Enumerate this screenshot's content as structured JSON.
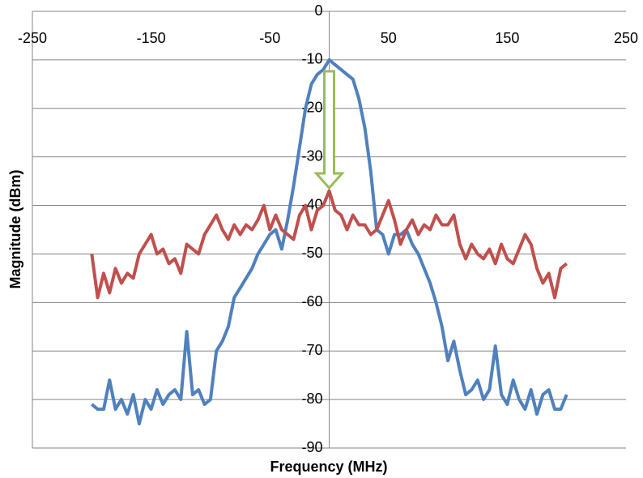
{
  "chart_data": {
    "type": "line",
    "xlabel": "Frequency (MHz)",
    "ylabel": "Magnitude (dBm)",
    "x": [
      -200,
      -195,
      -190,
      -185,
      -180,
      -175,
      -170,
      -165,
      -160,
      -155,
      -150,
      -145,
      -140,
      -135,
      -130,
      -125,
      -120,
      -115,
      -110,
      -105,
      -100,
      -95,
      -90,
      -85,
      -80,
      -75,
      -70,
      -65,
      -60,
      -55,
      -50,
      -45,
      -40,
      -35,
      -30,
      -25,
      -20,
      -15,
      -10,
      -5,
      0,
      5,
      10,
      15,
      20,
      25,
      30,
      35,
      40,
      45,
      50,
      55,
      60,
      65,
      70,
      75,
      80,
      85,
      90,
      95,
      100,
      105,
      110,
      115,
      120,
      125,
      130,
      135,
      140,
      145,
      150,
      155,
      160,
      165,
      170,
      175,
      180,
      185,
      190,
      195,
      200
    ],
    "series": [
      {
        "color": "#4f81bd",
        "values": [
          -81,
          -82,
          -82,
          -76,
          -82,
          -80,
          -83,
          -79,
          -85,
          -80,
          -82,
          -78,
          -81,
          -79,
          -78,
          -80,
          -66,
          -79,
          -78,
          -81,
          -80,
          -70,
          -68,
          -65,
          -59,
          -57,
          -55,
          -53,
          -50,
          -48,
          -46,
          -45,
          -49,
          -43,
          -36,
          -28,
          -20,
          -15,
          -13,
          -12,
          -10,
          -11,
          -12,
          -13,
          -14,
          -18,
          -24,
          -33,
          -45,
          -46,
          -50,
          -46,
          -46,
          -45,
          -48,
          -50,
          -53,
          -56,
          -60,
          -65,
          -72,
          -68,
          -74,
          -79,
          -78,
          -76,
          -80,
          -78,
          -69,
          -79,
          -81,
          -76,
          -80,
          -82,
          -78,
          -83,
          -79,
          -78,
          -82,
          -82,
          -79
        ]
      },
      {
        "color": "#c0504d",
        "values": [
          -50,
          -59,
          -54,
          -58,
          -53,
          -56,
          -54,
          -55,
          -50,
          -48,
          -46,
          -50,
          -49,
          -52,
          -51,
          -54,
          -48,
          -49,
          -50,
          -46,
          -44,
          -42,
          -45,
          -47,
          -44,
          -46,
          -44,
          -45,
          -43,
          -40,
          -45,
          -42,
          -45,
          -46,
          -47,
          -42,
          -40,
          -45,
          -41,
          -40,
          -37,
          -41,
          -42,
          -45,
          -42,
          -44,
          -44,
          -46,
          -45,
          -42,
          -39,
          -43,
          -48,
          -45,
          -43,
          -46,
          -44,
          -45,
          -42,
          -44,
          -44,
          -42,
          -48,
          -51,
          -48,
          -50,
          -51,
          -49,
          -52,
          -48,
          -51,
          -52,
          -49,
          -46,
          -48,
          -53,
          -56,
          -54,
          -59,
          -53,
          -52
        ]
      }
    ],
    "xlim": [
      -250,
      250
    ],
    "xticks": [
      -250,
      -150,
      -50,
      50,
      150,
      250
    ],
    "ylim": [
      -90,
      0
    ],
    "yticks": [
      0,
      -10,
      -20,
      -30,
      -40,
      -50,
      -60,
      -70,
      -80,
      -90
    ],
    "grid": true
  }
}
